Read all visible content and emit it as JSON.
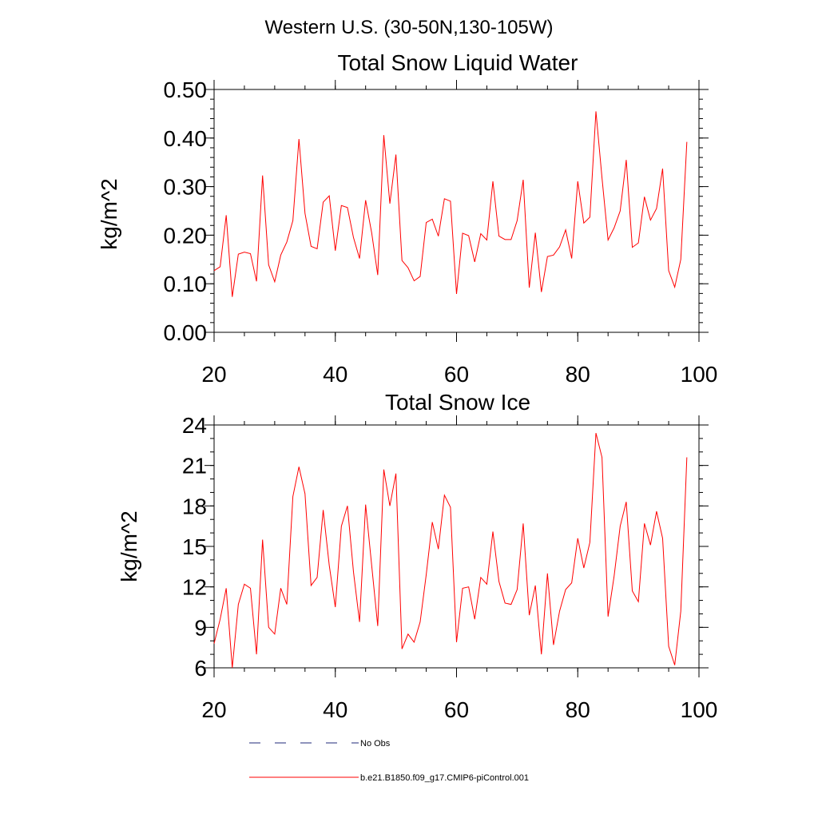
{
  "figure": {
    "suptitle": "Western U.S. (30-50N,130-105W)"
  },
  "colors": {
    "model_line": "#ff0000",
    "obs_line": "#1f2a7a",
    "axes": "#000000"
  },
  "legend": {
    "entries": [
      {
        "label": "No Obs",
        "style": "dashed",
        "color": "#1f2a7a"
      },
      {
        "label": "b.e21.B1850.f09_g17.CMIP6-piControl.001",
        "style": "solid",
        "color": "#ff0000"
      }
    ]
  },
  "chart_data": [
    {
      "type": "line",
      "title": "Total Snow Liquid Water",
      "xlabel": "",
      "ylabel": "kg/m^2",
      "xlim": [
        20,
        100
      ],
      "ylim": [
        0.0,
        0.5
      ],
      "xticks": [
        20,
        40,
        60,
        80,
        100
      ],
      "yticks": [
        0.0,
        0.1,
        0.2,
        0.3,
        0.4,
        0.5
      ],
      "ytick_labels": [
        "0.00",
        "0.10",
        "0.20",
        "0.30",
        "0.40",
        "0.50"
      ],
      "xtick_labels": [
        "20",
        "40",
        "60",
        "80",
        "100"
      ],
      "minor_x_step": 5,
      "minor_y_step": 0.02,
      "series": [
        {
          "name": "b.e21.B1850.f09_g17.CMIP6-piControl.001",
          "x": [
            20,
            21,
            22,
            23,
            24,
            25,
            26,
            27,
            28,
            29,
            30,
            31,
            32,
            33,
            34,
            35,
            36,
            37,
            38,
            39,
            40,
            41,
            42,
            43,
            44,
            45,
            46,
            47,
            48,
            49,
            50,
            51,
            52,
            53,
            54,
            55,
            56,
            57,
            58,
            59,
            60,
            61,
            62,
            63,
            64,
            65,
            66,
            67,
            68,
            69,
            70,
            71,
            72,
            73,
            74,
            75,
            76,
            77,
            78,
            79,
            80,
            81,
            82,
            83,
            84,
            85,
            86,
            87,
            88,
            89,
            90,
            91,
            92,
            93,
            94,
            95,
            96,
            97,
            98
          ],
          "values": [
            0.127,
            0.135,
            0.241,
            0.073,
            0.161,
            0.165,
            0.162,
            0.105,
            0.323,
            0.139,
            0.104,
            0.159,
            0.186,
            0.23,
            0.398,
            0.245,
            0.177,
            0.172,
            0.268,
            0.281,
            0.168,
            0.261,
            0.257,
            0.195,
            0.152,
            0.272,
            0.205,
            0.118,
            0.406,
            0.265,
            0.366,
            0.148,
            0.133,
            0.106,
            0.115,
            0.226,
            0.233,
            0.198,
            0.275,
            0.27,
            0.079,
            0.204,
            0.199,
            0.145,
            0.203,
            0.19,
            0.311,
            0.198,
            0.191,
            0.191,
            0.23,
            0.314,
            0.092,
            0.205,
            0.083,
            0.156,
            0.159,
            0.176,
            0.211,
            0.152,
            0.311,
            0.225,
            0.237,
            0.455,
            0.318,
            0.19,
            0.215,
            0.25,
            0.355,
            0.175,
            0.184,
            0.279,
            0.231,
            0.255,
            0.337,
            0.127,
            0.093,
            0.15,
            0.392
          ]
        }
      ]
    },
    {
      "type": "line",
      "title": "Total Snow Ice",
      "xlabel": "",
      "ylabel": "kg/m^2",
      "xlim": [
        20,
        100
      ],
      "ylim": [
        6,
        24
      ],
      "xticks": [
        20,
        40,
        60,
        80,
        100
      ],
      "yticks": [
        6,
        9,
        12,
        15,
        18,
        21,
        24
      ],
      "ytick_labels": [
        "6",
        "9",
        "12",
        "15",
        "18",
        "21",
        "24"
      ],
      "xtick_labels": [
        "20",
        "40",
        "60",
        "80",
        "100"
      ],
      "minor_x_step": 5,
      "minor_y_step": 1,
      "series": [
        {
          "name": "b.e21.B1850.f09_g17.CMIP6-piControl.001",
          "x": [
            20,
            21,
            22,
            23,
            24,
            25,
            26,
            27,
            28,
            29,
            30,
            31,
            32,
            33,
            34,
            35,
            36,
            37,
            38,
            39,
            40,
            41,
            42,
            43,
            44,
            45,
            46,
            47,
            48,
            49,
            50,
            51,
            52,
            53,
            54,
            55,
            56,
            57,
            58,
            59,
            60,
            61,
            62,
            63,
            64,
            65,
            66,
            67,
            68,
            69,
            70,
            71,
            72,
            73,
            74,
            75,
            76,
            77,
            78,
            79,
            80,
            81,
            82,
            83,
            84,
            85,
            86,
            87,
            88,
            89,
            90,
            91,
            92,
            93,
            94,
            95,
            96,
            97,
            98
          ],
          "values": [
            7.8,
            9.6,
            11.9,
            6.0,
            10.7,
            12.2,
            11.9,
            7.0,
            15.5,
            9.0,
            8.5,
            11.9,
            10.7,
            18.7,
            20.9,
            18.9,
            12.1,
            12.7,
            17.7,
            13.6,
            10.5,
            16.5,
            18.0,
            13.1,
            9.4,
            18.1,
            13.6,
            9.1,
            20.7,
            18.0,
            20.4,
            7.4,
            8.5,
            7.9,
            9.4,
            12.9,
            16.8,
            14.8,
            18.8,
            17.9,
            7.9,
            11.9,
            12.0,
            9.6,
            12.7,
            12.2,
            16.1,
            12.4,
            10.8,
            10.7,
            11.8,
            16.7,
            9.9,
            12.1,
            7.0,
            13.0,
            7.7,
            10.2,
            11.8,
            12.3,
            15.6,
            13.4,
            15.3,
            23.4,
            21.6,
            9.8,
            12.8,
            16.5,
            18.3,
            11.7,
            10.9,
            16.7,
            15.1,
            17.6,
            15.6,
            7.6,
            6.2,
            10.2,
            21.6
          ]
        }
      ]
    }
  ]
}
